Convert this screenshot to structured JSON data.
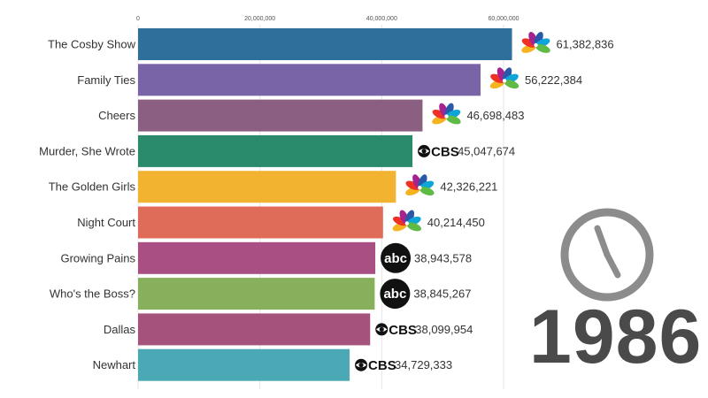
{
  "chart_data": {
    "type": "bar",
    "orientation": "horizontal",
    "title": "",
    "xlabel": "",
    "ylabel": "",
    "xlim": [
      0,
      63000000
    ],
    "x_ticks": [
      0,
      20000000,
      40000000,
      60000000
    ],
    "x_tick_labels": [
      "0",
      "20,000,000",
      "40,000,000",
      "60,000,000"
    ],
    "grid": true,
    "categories": [
      "The Cosby Show",
      "Family Ties",
      "Cheers",
      "Murder, She Wrote",
      "The Golden Girls",
      "Night Court",
      "Growing Pains",
      "Who's the Boss?",
      "Dallas",
      "Newhart"
    ],
    "values": [
      61382836,
      56222384,
      46698483,
      45047674,
      42326221,
      40214450,
      38943578,
      38845267,
      38099954,
      34729333
    ],
    "value_labels": [
      "61,382,836",
      "56,222,384",
      "46,698,483",
      "45,047,674",
      "42,326,221",
      "40,214,450",
      "38,943,578",
      "38,845,267",
      "38,099,954",
      "34,729,333"
    ],
    "networks": [
      "NBC",
      "NBC",
      "NBC",
      "CBS",
      "NBC",
      "NBC",
      "ABC",
      "ABC",
      "CBS",
      "CBS"
    ],
    "bar_colors": [
      "#2e6f9b",
      "#7a64a8",
      "#8a5f82",
      "#2a8a6c",
      "#f2b430",
      "#de6c58",
      "#a94f84",
      "#86b05c",
      "#a5527c",
      "#4aa9b4"
    ],
    "year": "1986"
  },
  "logos": {
    "cbs_text": "CBS",
    "abc_text": "abc",
    "nbc_colors": [
      "#f5b322",
      "#ee3124",
      "#a6228e",
      "#2958a8",
      "#0ea5d8",
      "#5fbb46"
    ]
  }
}
